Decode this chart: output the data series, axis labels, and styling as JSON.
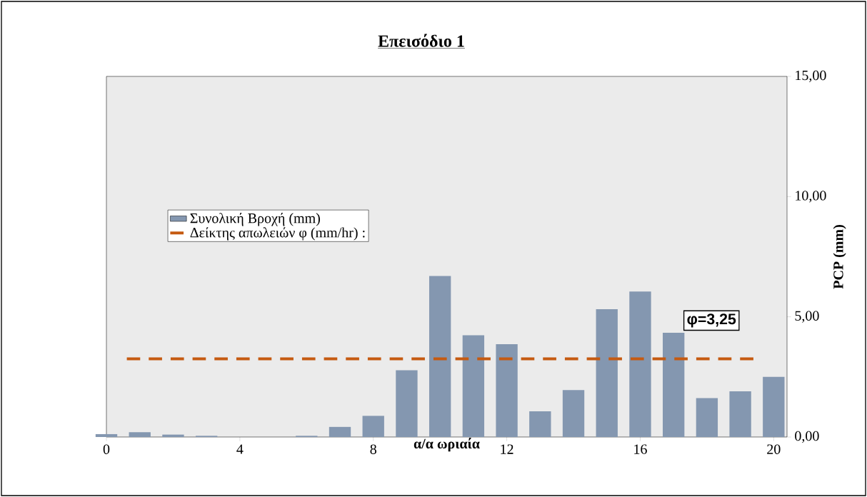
{
  "chart_data": {
    "type": "bar",
    "title": "Επεισόδιο 1",
    "xlabel": "α/α ωριαία",
    "ylabel": "PCP (mm)",
    "x": [
      0,
      1,
      2,
      3,
      4,
      5,
      6,
      7,
      8,
      9,
      10,
      11,
      12,
      13,
      14,
      15,
      16,
      17,
      18,
      19,
      20
    ],
    "series": [
      {
        "name": "Συνολική Βροχή (mm)",
        "color": "#8497b0",
        "values": [
          0.12,
          0.2,
          0.1,
          0.05,
          0,
          0,
          0.05,
          0.42,
          0.88,
          2.78,
          6.7,
          4.23,
          3.86,
          1.07,
          1.95,
          5.32,
          6.05,
          4.34,
          1.62,
          1.9,
          2.5
        ]
      }
    ],
    "xlim": [
      0,
      20.4
    ],
    "xticks": [
      0,
      4,
      8,
      12,
      16,
      20
    ],
    "ylim": [
      0,
      15
    ],
    "yticks": [
      {
        "value": 0,
        "label": "0,00"
      },
      {
        "value": 5,
        "label": "5,00"
      },
      {
        "value": 10,
        "label": "10,00"
      },
      {
        "value": 15,
        "label": "15,00"
      }
    ],
    "ref_lines": [
      {
        "axis": "y",
        "value": 3.25,
        "label": "Δείκτης απωλειών φ (mm/hr) :",
        "color": "#c55a11",
        "line_style": "dashed"
      }
    ],
    "annotations": [
      "φ=3,25"
    ],
    "legend": "left"
  }
}
